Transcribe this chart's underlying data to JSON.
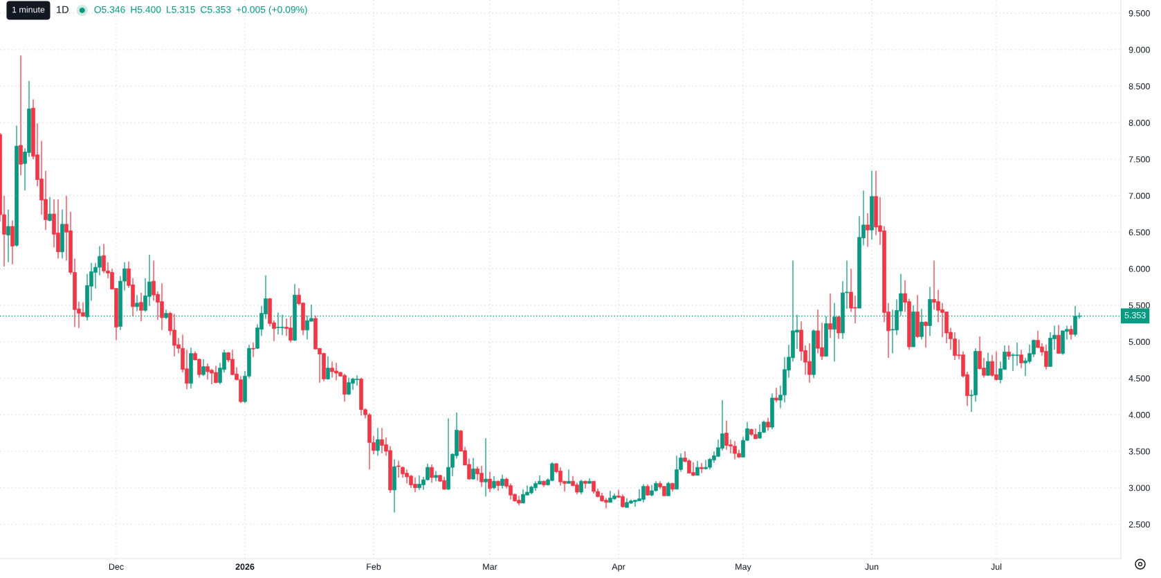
{
  "chart_data": {
    "type": "candlestick",
    "title": "1D",
    "annotations": [
      "1 minute",
      "O5.346",
      "H5.400",
      "L5.315",
      "C5.353",
      "+0.005 (+0.09%)"
    ],
    "x": [
      "2025-11-03",
      "2025-11-04",
      "2025-11-05",
      "2025-11-06",
      "2025-11-07",
      "2025-11-08",
      "2025-11-09",
      "2025-11-10",
      "2025-11-11",
      "2025-11-12",
      "2025-11-13",
      "2025-11-14",
      "2025-11-15",
      "2025-11-16",
      "2025-11-17",
      "2025-11-18",
      "2025-11-19",
      "2025-11-20",
      "2025-11-21",
      "2025-11-22",
      "2025-11-23",
      "2025-11-24",
      "2025-11-25",
      "2025-11-26",
      "2025-11-27",
      "2025-11-28",
      "2025-11-29",
      "2025-11-30",
      "2025-12-01",
      "2025-12-02",
      "2025-12-03",
      "2025-12-04",
      "2025-12-05",
      "2025-12-06",
      "2025-12-07",
      "2025-12-08",
      "2025-12-09",
      "2025-12-10",
      "2025-12-11",
      "2025-12-12",
      "2025-12-13",
      "2025-12-14",
      "2025-12-15",
      "2025-12-16",
      "2025-12-17",
      "2025-12-18",
      "2025-12-19",
      "2025-12-20",
      "2025-12-21",
      "2025-12-22",
      "2025-12-23",
      "2025-12-24",
      "2025-12-25",
      "2025-12-26",
      "2025-12-27",
      "2025-12-28",
      "2025-12-29",
      "2025-12-30",
      "2025-12-31",
      "2026-01-01",
      "2026-01-02",
      "2026-01-03",
      "2026-01-04",
      "2026-01-05",
      "2026-01-06",
      "2026-01-07",
      "2026-01-08",
      "2026-01-09",
      "2026-01-10",
      "2026-01-11",
      "2026-01-12",
      "2026-01-13",
      "2026-01-14",
      "2026-01-15",
      "2026-01-16",
      "2026-01-17",
      "2026-01-18",
      "2026-01-19",
      "2026-01-20",
      "2026-01-21",
      "2026-01-22",
      "2026-01-23",
      "2026-01-24",
      "2026-01-25",
      "2026-01-26",
      "2026-01-27",
      "2026-01-28",
      "2026-01-29",
      "2026-01-30",
      "2026-01-31",
      "2026-02-01",
      "2026-02-02",
      "2026-02-03",
      "2026-02-04",
      "2026-02-05",
      "2026-02-06",
      "2026-02-07",
      "2026-02-08",
      "2026-02-09",
      "2026-02-10",
      "2026-02-11",
      "2026-02-12",
      "2026-02-13",
      "2026-02-14",
      "2026-02-15",
      "2026-02-16",
      "2026-02-17",
      "2026-02-18",
      "2026-02-19",
      "2026-02-20",
      "2026-02-21",
      "2026-02-22",
      "2026-02-23",
      "2026-02-24",
      "2026-02-25",
      "2026-02-26",
      "2026-02-27",
      "2026-02-28",
      "2026-03-01",
      "2026-03-02",
      "2026-03-03",
      "2026-03-04",
      "2026-03-05",
      "2026-03-06",
      "2026-03-07",
      "2026-03-08",
      "2026-03-09",
      "2026-03-10",
      "2026-03-11",
      "2026-03-12",
      "2026-03-13",
      "2026-03-14",
      "2026-03-15",
      "2026-03-16",
      "2026-03-17",
      "2026-03-18",
      "2026-03-19",
      "2026-03-20",
      "2026-03-21",
      "2026-03-22",
      "2026-03-23",
      "2026-03-24",
      "2026-03-25",
      "2026-03-26",
      "2026-03-27",
      "2026-03-28",
      "2026-03-29",
      "2026-03-30",
      "2026-03-31",
      "2026-04-01",
      "2026-04-02",
      "2026-04-03",
      "2026-04-04",
      "2026-04-05",
      "2026-04-06",
      "2026-04-07",
      "2026-04-08",
      "2026-04-09",
      "2026-04-10",
      "2026-04-11",
      "2026-04-12",
      "2026-04-13",
      "2026-04-14",
      "2026-04-15",
      "2026-04-16",
      "2026-04-17",
      "2026-04-18",
      "2026-04-19",
      "2026-04-20",
      "2026-04-21",
      "2026-04-22",
      "2026-04-23",
      "2026-04-24",
      "2026-04-25",
      "2026-04-26",
      "2026-04-27",
      "2026-04-28",
      "2026-04-29",
      "2026-04-30",
      "2026-05-01",
      "2026-05-02",
      "2026-05-03",
      "2026-05-04",
      "2026-05-05",
      "2026-05-06",
      "2026-05-07",
      "2026-05-08",
      "2026-05-09",
      "2026-05-10",
      "2026-05-11",
      "2026-05-12",
      "2026-05-13",
      "2026-05-14",
      "2026-05-15",
      "2026-05-16",
      "2026-05-17",
      "2026-05-18",
      "2026-05-19",
      "2026-05-20",
      "2026-05-21",
      "2026-05-22",
      "2026-05-23",
      "2026-05-24",
      "2026-05-25",
      "2026-05-26",
      "2026-05-27",
      "2026-05-28",
      "2026-05-29",
      "2026-05-30",
      "2026-05-31",
      "2026-06-01",
      "2026-06-02",
      "2026-06-03",
      "2026-06-04",
      "2026-06-05",
      "2026-06-06",
      "2026-06-07",
      "2026-06-08",
      "2026-06-09",
      "2026-06-10",
      "2026-06-11",
      "2026-06-12",
      "2026-06-13",
      "2026-06-14",
      "2026-06-15",
      "2026-06-16",
      "2026-06-17",
      "2026-06-18",
      "2026-06-19",
      "2026-06-20",
      "2026-06-21",
      "2026-06-22",
      "2026-06-23",
      "2026-06-24",
      "2026-06-25",
      "2026-06-26",
      "2026-06-27",
      "2026-06-28",
      "2026-06-29",
      "2026-06-30",
      "2026-07-01",
      "2026-07-02",
      "2026-07-03",
      "2026-07-04",
      "2026-07-05",
      "2026-07-06",
      "2026-07-07",
      "2026-07-08",
      "2026-07-09",
      "2026-07-10",
      "2026-07-11",
      "2026-07-12",
      "2026-07-13",
      "2026-07-14",
      "2026-07-15",
      "2026-07-16",
      "2026-07-17",
      "2026-07-18",
      "2026-07-19",
      "2026-07-20",
      "2026-07-21"
    ],
    "ohlc": [
      [
        7.84,
        7.86,
        6.65,
        6.74
      ],
      [
        6.74,
        7.0,
        6.03,
        6.47
      ],
      [
        6.46,
        6.81,
        6.09,
        6.58
      ],
      [
        6.58,
        6.66,
        6.06,
        6.31
      ],
      [
        6.32,
        7.96,
        6.3,
        7.68
      ],
      [
        7.69,
        8.92,
        7.28,
        7.43
      ],
      [
        7.44,
        7.65,
        7.07,
        7.6
      ],
      [
        7.59,
        8.57,
        7.53,
        8.19
      ],
      [
        8.2,
        8.32,
        7.5,
        7.54
      ],
      [
        7.56,
        7.99,
        7.13,
        7.22
      ],
      [
        7.23,
        7.75,
        6.74,
        6.94
      ],
      [
        6.95,
        7.34,
        6.53,
        6.67
      ],
      [
        6.66,
        6.98,
        6.65,
        6.75
      ],
      [
        6.75,
        6.95,
        6.29,
        6.47
      ],
      [
        6.49,
        6.95,
        6.14,
        6.23
      ],
      [
        6.23,
        6.81,
        6.14,
        6.61
      ],
      [
        6.61,
        7.0,
        6.11,
        6.5
      ],
      [
        6.52,
        6.78,
        5.92,
        5.95
      ],
      [
        5.95,
        6.14,
        5.2,
        5.44
      ],
      [
        5.45,
        5.55,
        5.19,
        5.39
      ],
      [
        5.4,
        5.54,
        5.34,
        5.35
      ],
      [
        5.34,
        5.93,
        5.29,
        5.77
      ],
      [
        5.76,
        6.08,
        5.56,
        5.96
      ],
      [
        5.95,
        6.08,
        5.73,
        6.02
      ],
      [
        6.02,
        6.31,
        5.91,
        6.17
      ],
      [
        6.18,
        6.34,
        5.94,
        5.97
      ],
      [
        5.97,
        6.09,
        5.87,
        5.94
      ],
      [
        5.95,
        6.0,
        5.72,
        5.72
      ],
      [
        5.73,
        5.74,
        5.02,
        5.2
      ],
      [
        5.21,
        5.9,
        5.16,
        5.83
      ],
      [
        5.83,
        6.09,
        5.7,
        6.0
      ],
      [
        6.0,
        6.1,
        5.74,
        5.77
      ],
      [
        5.78,
        5.87,
        5.35,
        5.48
      ],
      [
        5.48,
        5.64,
        5.42,
        5.53
      ],
      [
        5.54,
        5.67,
        5.28,
        5.43
      ],
      [
        5.43,
        5.87,
        5.41,
        5.63
      ],
      [
        5.62,
        6.19,
        5.49,
        5.82
      ],
      [
        5.83,
        6.11,
        5.56,
        5.64
      ],
      [
        5.65,
        5.69,
        5.3,
        5.54
      ],
      [
        5.55,
        5.8,
        5.16,
        5.33
      ],
      [
        5.33,
        5.44,
        5.31,
        5.39
      ],
      [
        5.39,
        5.41,
        5.09,
        5.15
      ],
      [
        5.16,
        5.38,
        4.8,
        4.95
      ],
      [
        4.96,
        5.05,
        4.84,
        4.91
      ],
      [
        4.91,
        5.1,
        4.58,
        4.62
      ],
      [
        4.63,
        4.89,
        4.35,
        4.43
      ],
      [
        4.43,
        4.92,
        4.36,
        4.84
      ],
      [
        4.84,
        4.87,
        4.75,
        4.75
      ],
      [
        4.76,
        4.77,
        4.51,
        4.55
      ],
      [
        4.55,
        4.76,
        4.53,
        4.66
      ],
      [
        4.66,
        4.7,
        4.48,
        4.59
      ],
      [
        4.61,
        4.63,
        4.42,
        4.57
      ],
      [
        4.58,
        4.67,
        4.43,
        4.44
      ],
      [
        4.44,
        4.71,
        4.42,
        4.64
      ],
      [
        4.62,
        4.89,
        4.58,
        4.85
      ],
      [
        4.85,
        4.86,
        4.72,
        4.75
      ],
      [
        4.76,
        4.89,
        4.54,
        4.55
      ],
      [
        4.56,
        4.65,
        4.47,
        4.48
      ],
      [
        4.48,
        4.53,
        4.16,
        4.18
      ],
      [
        4.18,
        4.6,
        4.16,
        4.53
      ],
      [
        4.53,
        4.96,
        4.5,
        4.91
      ],
      [
        4.91,
        4.99,
        4.79,
        4.9
      ],
      [
        4.91,
        5.24,
        4.9,
        5.19
      ],
      [
        5.17,
        5.49,
        5.08,
        5.39
      ],
      [
        5.38,
        5.91,
        5.31,
        5.59
      ],
      [
        5.59,
        5.6,
        5.21,
        5.25
      ],
      [
        5.26,
        5.29,
        5.01,
        5.18
      ],
      [
        5.19,
        5.4,
        5.1,
        5.2
      ],
      [
        5.19,
        5.37,
        5.09,
        5.2
      ],
      [
        5.2,
        5.32,
        5.08,
        5.18
      ],
      [
        5.19,
        5.35,
        4.99,
        5.02
      ],
      [
        5.02,
        5.79,
        5.01,
        5.64
      ],
      [
        5.64,
        5.73,
        5.5,
        5.52
      ],
      [
        5.53,
        5.54,
        5.09,
        5.16
      ],
      [
        5.16,
        5.36,
        5.03,
        5.29
      ],
      [
        5.28,
        5.51,
        5.28,
        5.32
      ],
      [
        5.32,
        5.36,
        4.9,
        4.9
      ],
      [
        4.91,
        4.91,
        4.44,
        4.83
      ],
      [
        4.84,
        4.85,
        4.46,
        4.49
      ],
      [
        4.49,
        4.8,
        4.48,
        4.64
      ],
      [
        4.64,
        4.73,
        4.51,
        4.59
      ],
      [
        4.6,
        4.71,
        4.47,
        4.57
      ],
      [
        4.58,
        4.59,
        4.52,
        4.53
      ],
      [
        4.54,
        4.56,
        4.18,
        4.28
      ],
      [
        4.28,
        4.51,
        4.27,
        4.44
      ],
      [
        4.43,
        4.51,
        4.34,
        4.49
      ],
      [
        4.48,
        4.54,
        4.4,
        4.49
      ],
      [
        4.49,
        4.51,
        3.99,
        4.07
      ],
      [
        4.07,
        4.09,
        3.95,
        4.0
      ],
      [
        4.0,
        4.02,
        3.25,
        3.62
      ],
      [
        3.62,
        3.71,
        3.46,
        3.51
      ],
      [
        3.51,
        3.82,
        3.44,
        3.66
      ],
      [
        3.66,
        3.82,
        3.47,
        3.58
      ],
      [
        3.59,
        3.69,
        3.44,
        3.5
      ],
      [
        3.51,
        3.57,
        2.93,
        2.97
      ],
      [
        2.97,
        3.39,
        2.66,
        3.29
      ],
      [
        3.3,
        3.37,
        3.14,
        3.29
      ],
      [
        3.28,
        3.29,
        3.14,
        3.19
      ],
      [
        3.2,
        3.25,
        3.06,
        3.15
      ],
      [
        3.16,
        3.18,
        3.0,
        3.04
      ],
      [
        3.05,
        3.14,
        2.94,
        3.0
      ],
      [
        3.0,
        3.17,
        2.97,
        3.05
      ],
      [
        3.04,
        3.15,
        2.97,
        3.11
      ],
      [
        3.11,
        3.33,
        3.1,
        3.28
      ],
      [
        3.28,
        3.32,
        3.07,
        3.14
      ],
      [
        3.14,
        3.23,
        3.09,
        3.17
      ],
      [
        3.17,
        3.18,
        3.08,
        3.09
      ],
      [
        3.1,
        3.15,
        2.97,
        2.98
      ],
      [
        2.98,
        3.95,
        2.97,
        3.28
      ],
      [
        3.28,
        3.47,
        3.16,
        3.46
      ],
      [
        3.44,
        4.03,
        3.4,
        3.79
      ],
      [
        3.78,
        3.79,
        3.5,
        3.5
      ],
      [
        3.51,
        3.56,
        3.31,
        3.31
      ],
      [
        3.32,
        3.4,
        3.11,
        3.12
      ],
      [
        3.12,
        3.41,
        3.11,
        3.26
      ],
      [
        3.26,
        3.29,
        3.1,
        3.19
      ],
      [
        3.2,
        3.3,
        3.01,
        3.08
      ],
      [
        3.08,
        3.68,
        2.88,
        3.12
      ],
      [
        3.12,
        3.22,
        2.94,
        2.99
      ],
      [
        3.0,
        3.16,
        2.98,
        3.09
      ],
      [
        3.09,
        3.1,
        2.96,
        3.03
      ],
      [
        3.03,
        3.18,
        2.99,
        3.12
      ],
      [
        3.12,
        3.14,
        2.99,
        3.02
      ],
      [
        3.03,
        3.06,
        2.84,
        2.9
      ],
      [
        2.91,
        2.92,
        2.81,
        2.82
      ],
      [
        2.83,
        2.89,
        2.76,
        2.79
      ],
      [
        2.79,
        2.98,
        2.79,
        2.91
      ],
      [
        2.9,
        3.03,
        2.9,
        2.94
      ],
      [
        2.93,
        3.03,
        2.91,
        3.01
      ],
      [
        3.0,
        3.09,
        2.96,
        3.06
      ],
      [
        3.05,
        3.17,
        3.05,
        3.09
      ],
      [
        3.09,
        3.1,
        3.01,
        3.04
      ],
      [
        3.04,
        3.13,
        3.03,
        3.11
      ],
      [
        3.1,
        3.35,
        3.09,
        3.33
      ],
      [
        3.33,
        3.34,
        3.2,
        3.22
      ],
      [
        3.23,
        3.28,
        3.03,
        3.08
      ],
      [
        3.09,
        3.09,
        2.95,
        3.06
      ],
      [
        3.06,
        3.25,
        3.06,
        3.09
      ],
      [
        3.09,
        3.16,
        3.02,
        3.03
      ],
      [
        3.04,
        3.07,
        2.91,
        2.94
      ],
      [
        2.94,
        3.11,
        2.91,
        3.09
      ],
      [
        3.09,
        3.1,
        2.99,
        3.06
      ],
      [
        3.06,
        3.13,
        3.06,
        3.09
      ],
      [
        3.09,
        3.09,
        2.92,
        2.95
      ],
      [
        2.95,
        2.99,
        2.87,
        2.88
      ],
      [
        2.89,
        2.93,
        2.81,
        2.82
      ],
      [
        2.83,
        2.86,
        2.72,
        2.8
      ],
      [
        2.8,
        2.96,
        2.8,
        2.86
      ],
      [
        2.85,
        2.92,
        2.83,
        2.89
      ],
      [
        2.89,
        2.97,
        2.86,
        2.87
      ],
      [
        2.88,
        2.91,
        2.73,
        2.74
      ],
      [
        2.73,
        2.86,
        2.73,
        2.8
      ],
      [
        2.79,
        2.84,
        2.78,
        2.82
      ],
      [
        2.81,
        2.83,
        2.74,
        2.83
      ],
      [
        2.82,
        2.98,
        2.82,
        2.85
      ],
      [
        2.84,
        3.05,
        2.8,
        3.02
      ],
      [
        3.02,
        3.05,
        2.89,
        2.9
      ],
      [
        2.9,
        3.04,
        2.88,
        2.96
      ],
      [
        2.96,
        3.09,
        2.95,
        3.06
      ],
      [
        3.06,
        3.09,
        2.98,
        3.01
      ],
      [
        3.02,
        3.02,
        2.89,
        2.89
      ],
      [
        2.89,
        3.08,
        2.89,
        3.06
      ],
      [
        3.06,
        3.07,
        2.95,
        2.98
      ],
      [
        2.98,
        3.44,
        2.98,
        3.25
      ],
      [
        3.25,
        3.47,
        3.22,
        3.41
      ],
      [
        3.41,
        3.5,
        3.35,
        3.36
      ],
      [
        3.37,
        3.39,
        3.2,
        3.2
      ],
      [
        3.21,
        3.35,
        3.16,
        3.17
      ],
      [
        3.17,
        3.37,
        3.17,
        3.28
      ],
      [
        3.28,
        3.34,
        3.2,
        3.26
      ],
      [
        3.26,
        3.38,
        3.25,
        3.28
      ],
      [
        3.28,
        3.41,
        3.25,
        3.39
      ],
      [
        3.38,
        3.5,
        3.34,
        3.44
      ],
      [
        3.43,
        3.66,
        3.42,
        3.55
      ],
      [
        3.54,
        4.2,
        3.51,
        3.74
      ],
      [
        3.75,
        3.92,
        3.52,
        3.58
      ],
      [
        3.59,
        3.66,
        3.47,
        3.57
      ],
      [
        3.57,
        3.64,
        3.39,
        3.47
      ],
      [
        3.47,
        3.52,
        3.41,
        3.42
      ],
      [
        3.42,
        3.7,
        3.42,
        3.65
      ],
      [
        3.65,
        3.9,
        3.64,
        3.81
      ],
      [
        3.8,
        3.81,
        3.71,
        3.73
      ],
      [
        3.73,
        3.81,
        3.67,
        3.67
      ],
      [
        3.68,
        3.87,
        3.67,
        3.76
      ],
      [
        3.76,
        3.92,
        3.75,
        3.9
      ],
      [
        3.9,
        3.96,
        3.78,
        3.83
      ],
      [
        3.83,
        4.29,
        3.8,
        4.23
      ],
      [
        4.23,
        4.37,
        4.17,
        4.2
      ],
      [
        4.2,
        4.4,
        4.09,
        4.27
      ],
      [
        4.27,
        4.79,
        4.17,
        4.62
      ],
      [
        4.61,
        4.96,
        4.51,
        4.79
      ],
      [
        4.78,
        6.11,
        4.73,
        5.15
      ],
      [
        5.13,
        5.37,
        4.9,
        5.16
      ],
      [
        5.16,
        5.28,
        4.74,
        4.87
      ],
      [
        4.88,
        4.95,
        4.55,
        4.72
      ],
      [
        4.73,
        4.98,
        4.44,
        4.55
      ],
      [
        4.55,
        5.17,
        4.5,
        5.15
      ],
      [
        5.15,
        5.44,
        4.84,
        4.91
      ],
      [
        4.92,
        5.26,
        4.75,
        4.8
      ],
      [
        4.8,
        5.35,
        4.8,
        5.25
      ],
      [
        5.25,
        5.66,
        5.05,
        5.17
      ],
      [
        5.17,
        5.53,
        4.73,
        5.34
      ],
      [
        5.34,
        5.36,
        5.04,
        5.12
      ],
      [
        5.12,
        5.83,
        5.04,
        5.67
      ],
      [
        5.67,
        6.11,
        5.45,
        5.68
      ],
      [
        5.68,
        6.0,
        5.41,
        5.46
      ],
      [
        5.47,
        5.63,
        5.25,
        5.46
      ],
      [
        5.46,
        6.72,
        5.46,
        6.43
      ],
      [
        6.42,
        7.07,
        6.32,
        6.6
      ],
      [
        6.6,
        6.76,
        6.3,
        6.53
      ],
      [
        6.53,
        7.34,
        6.4,
        6.99
      ],
      [
        6.99,
        7.34,
        6.46,
        6.57
      ],
      [
        6.59,
        6.98,
        6.33,
        6.51
      ],
      [
        6.52,
        6.58,
        5.27,
        5.4
      ],
      [
        5.41,
        5.53,
        4.78,
        5.15
      ],
      [
        5.16,
        5.44,
        4.84,
        5.17
      ],
      [
        5.16,
        5.58,
        5.09,
        5.43
      ],
      [
        5.42,
        5.93,
        5.36,
        5.66
      ],
      [
        5.66,
        5.84,
        5.41,
        5.54
      ],
      [
        5.55,
        5.59,
        4.89,
        4.93
      ],
      [
        4.93,
        5.5,
        4.93,
        5.41
      ],
      [
        5.41,
        5.64,
        5.05,
        5.07
      ],
      [
        5.07,
        5.45,
        5.03,
        5.27
      ],
      [
        5.27,
        5.28,
        4.92,
        5.22
      ],
      [
        5.22,
        5.75,
        5.08,
        5.58
      ],
      [
        5.58,
        6.11,
        5.44,
        5.54
      ],
      [
        5.55,
        5.71,
        5.27,
        5.43
      ],
      [
        5.44,
        5.53,
        5.06,
        5.4
      ],
      [
        5.41,
        5.41,
        4.98,
        5.12
      ],
      [
        5.13,
        5.19,
        4.89,
        5.04
      ],
      [
        5.04,
        5.13,
        4.75,
        4.81
      ],
      [
        4.82,
        5.03,
        4.76,
        4.81
      ],
      [
        4.82,
        4.87,
        4.51,
        4.53
      ],
      [
        4.55,
        4.59,
        4.12,
        4.26
      ],
      [
        4.26,
        4.34,
        4.04,
        4.27
      ],
      [
        4.27,
        4.91,
        4.18,
        4.87
      ],
      [
        4.87,
        5.07,
        4.62,
        4.63
      ],
      [
        4.64,
        4.78,
        4.51,
        4.54
      ],
      [
        4.54,
        4.85,
        4.53,
        4.73
      ],
      [
        4.73,
        4.82,
        4.52,
        4.54
      ],
      [
        4.55,
        4.87,
        4.47,
        4.48
      ],
      [
        4.48,
        4.73,
        4.43,
        4.63
      ],
      [
        4.62,
        4.95,
        4.62,
        4.86
      ],
      [
        4.86,
        4.95,
        4.75,
        4.8
      ],
      [
        4.81,
        4.84,
        4.6,
        4.82
      ],
      [
        4.81,
        4.99,
        4.67,
        4.82
      ],
      [
        4.82,
        4.89,
        4.64,
        4.71
      ],
      [
        4.71,
        4.78,
        4.53,
        4.74
      ],
      [
        4.73,
        4.96,
        4.7,
        4.84
      ],
      [
        4.83,
        5.03,
        4.79,
        5.02
      ],
      [
        5.02,
        5.15,
        4.92,
        4.92
      ],
      [
        4.93,
        4.98,
        4.81,
        4.86
      ],
      [
        4.87,
        4.96,
        4.62,
        4.66
      ],
      [
        4.66,
        5.13,
        4.66,
        5.05
      ],
      [
        5.04,
        5.22,
        4.89,
        5.09
      ],
      [
        5.09,
        5.23,
        4.84,
        4.84
      ],
      [
        4.84,
        5.15,
        4.82,
        5.15
      ],
      [
        5.14,
        5.22,
        5.03,
        5.17
      ],
      [
        5.17,
        5.22,
        5.03,
        5.1
      ],
      [
        5.1,
        5.49,
        5.07,
        5.35
      ],
      [
        5.346,
        5.4,
        5.315,
        5.353
      ]
    ],
    "colors": [
      "#f23645",
      "#f23645",
      "#089981",
      "#f23645",
      "#089981",
      "#f23645",
      "#089981",
      "#089981",
      "#f23645",
      "#f23645",
      "#f23645",
      "#f23645",
      "#089981",
      "#f23645",
      "#f23645",
      "#089981",
      "#f23645",
      "#f23645",
      "#f23645",
      "#f23645",
      "#f23645",
      "#089981",
      "#089981",
      "#089981",
      "#089981",
      "#f23645",
      "#f23645",
      "#f23645",
      "#f23645",
      "#089981",
      "#089981",
      "#f23645",
      "#f23645",
      "#089981",
      "#f23645",
      "#089981",
      "#089981",
      "#f23645",
      "#f23645",
      "#f23645",
      "#089981",
      "#f23645",
      "#f23645",
      "#f23645",
      "#f23645",
      "#f23645",
      "#089981",
      "#f23645",
      "#f23645",
      "#089981",
      "#f23645",
      "#f23645",
      "#f23645",
      "#089981",
      "#089981",
      "#f23645",
      "#f23645",
      "#f23645",
      "#f23645",
      "#089981",
      "#089981",
      "#f23645",
      "#089981",
      "#089981",
      "#089981",
      "#f23645",
      "#f23645",
      "#089981",
      "#089981",
      "#f23645",
      "#f23645",
      "#089981",
      "#f23645",
      "#f23645",
      "#089981",
      "#089981",
      "#f23645",
      "#f23645",
      "#f23645",
      "#089981",
      "#f23645",
      "#f23645",
      "#f23645",
      "#f23645",
      "#089981",
      "#089981",
      "#089981",
      "#f23645",
      "#f23645",
      "#f23645",
      "#f23645",
      "#089981",
      "#f23645",
      "#f23645",
      "#f23645",
      "#089981",
      "#f23645",
      "#f23645",
      "#f23645",
      "#f23645",
      "#f23645",
      "#089981",
      "#089981",
      "#089981",
      "#f23645",
      "#089981",
      "#f23645",
      "#f23645",
      "#089981",
      "#089981",
      "#089981",
      "#f23645",
      "#f23645",
      "#f23645",
      "#089981",
      "#f23645",
      "#f23645",
      "#089981",
      "#f23645",
      "#089981",
      "#f23645",
      "#089981",
      "#f23645",
      "#f23645",
      "#f23645",
      "#f23645",
      "#089981",
      "#089981",
      "#089981",
      "#089981",
      "#089981",
      "#f23645",
      "#089981",
      "#089981",
      "#f23645",
      "#f23645",
      "#f23645",
      "#089981",
      "#f23645",
      "#f23645",
      "#089981",
      "#f23645",
      "#089981",
      "#f23645",
      "#f23645",
      "#f23645",
      "#f23645",
      "#089981",
      "#089981",
      "#f23645",
      "#f23645",
      "#089981",
      "#089981",
      "#089981",
      "#089981",
      "#089981",
      "#f23645",
      "#089981",
      "#089981",
      "#f23645",
      "#f23645",
      "#089981",
      "#f23645",
      "#089981",
      "#089981",
      "#f23645",
      "#f23645",
      "#f23645",
      "#089981",
      "#f23645",
      "#089981",
      "#089981",
      "#089981",
      "#089981",
      "#089981",
      "#f23645",
      "#f23645",
      "#f23645",
      "#f23645",
      "#089981",
      "#089981",
      "#f23645",
      "#f23645",
      "#089981",
      "#089981",
      "#f23645",
      "#089981",
      "#f23645",
      "#089981",
      "#089981",
      "#089981",
      "#089981",
      "#089981",
      "#f23645",
      "#f23645",
      "#f23645",
      "#089981",
      "#f23645",
      "#f23645",
      "#089981",
      "#f23645",
      "#089981",
      "#f23645",
      "#089981",
      "#089981",
      "#f23645",
      "#f23645",
      "#089981",
      "#089981",
      "#f23645",
      "#089981",
      "#f23645",
      "#f23645",
      "#f23645",
      "#f23645",
      "#089981",
      "#089981",
      "#089981",
      "#f23645",
      "#f23645",
      "#089981",
      "#f23645",
      "#089981",
      "#f23645",
      "#089981",
      "#f23645",
      "#f23645",
      "#f23645",
      "#f23645",
      "#f23645",
      "#f23645",
      "#f23645",
      "#f23645",
      "#f23645",
      "#089981",
      "#089981",
      "#f23645",
      "#f23645",
      "#089981",
      "#f23645",
      "#f23645",
      "#089981",
      "#089981",
      "#f23645",
      "#089981",
      "#089981",
      "#f23645",
      "#089981",
      "#089981",
      "#089981",
      "#f23645",
      "#f23645",
      "#f23645",
      "#089981",
      "#089981",
      "#f23645",
      "#089981",
      "#089981",
      "#f23645",
      "#089981",
      "#089981"
    ],
    "xlim": [
      "2025-11-03",
      "2026-07-31"
    ],
    "xticks": [
      {
        "value": "2025-12-01",
        "label": "Dec"
      },
      {
        "value": "2026-01-01",
        "label": "2026"
      },
      {
        "value": "2026-02-01",
        "label": "Feb"
      },
      {
        "value": "2026-03-01",
        "label": "Mar"
      },
      {
        "value": "2026-04-01",
        "label": "Apr"
      },
      {
        "value": "2026-05-01",
        "label": "May"
      },
      {
        "value": "2026-06-01",
        "label": "Jun"
      },
      {
        "value": "2026-07-01",
        "label": "Jul"
      }
    ],
    "ylim": [
      2.03,
      9.68
    ],
    "yticks": [
      {
        "value": 2.5,
        "label": "2.500"
      },
      {
        "value": 3.0,
        "label": "3.000"
      },
      {
        "value": 3.5,
        "label": "3.500"
      },
      {
        "value": 4.0,
        "label": "4.000"
      },
      {
        "value": 4.5,
        "label": "4.500"
      },
      {
        "value": 5.0,
        "label": "5.000"
      },
      {
        "value": 5.5,
        "label": "5.500"
      },
      {
        "value": 6.0,
        "label": "6.000"
      },
      {
        "value": 6.5,
        "label": "6.500"
      },
      {
        "value": 7.0,
        "label": "7.000"
      },
      {
        "value": 7.5,
        "label": "7.500"
      },
      {
        "value": 8.0,
        "label": "8.000"
      },
      {
        "value": 8.5,
        "label": "8.500"
      },
      {
        "value": 9.0,
        "label": "9.000"
      },
      {
        "value": 9.5,
        "label": "9.500"
      }
    ],
    "ref_lines": [
      {
        "axis": "y",
        "value": 5.353,
        "label": "5.353",
        "color": "#089981",
        "line_style": "dotted"
      }
    ],
    "grid": true
  }
}
